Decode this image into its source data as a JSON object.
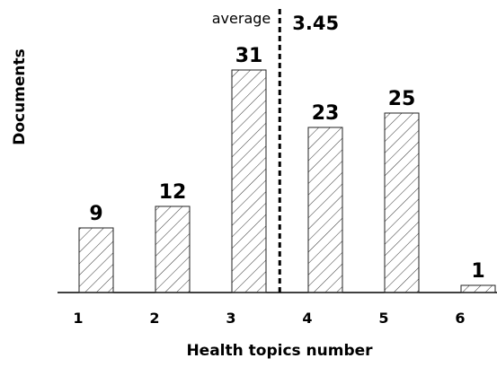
{
  "chart_data": {
    "type": "bar",
    "title": "",
    "xlabel": "Health topics number",
    "ylabel": "Documents",
    "categories": [
      "1",
      "2",
      "3",
      "4",
      "5",
      "6"
    ],
    "values": [
      9,
      12,
      31,
      23,
      25,
      1
    ],
    "data_labels": [
      "9",
      "12",
      "31",
      "23",
      "25",
      "1"
    ],
    "ylim": [
      0,
      37
    ],
    "grid": false,
    "bar_fill": "hatched",
    "bar_color": "#222222",
    "reference_line": {
      "label": "average",
      "value": 3.45,
      "value_label": "3.45",
      "style": "dashed"
    }
  }
}
